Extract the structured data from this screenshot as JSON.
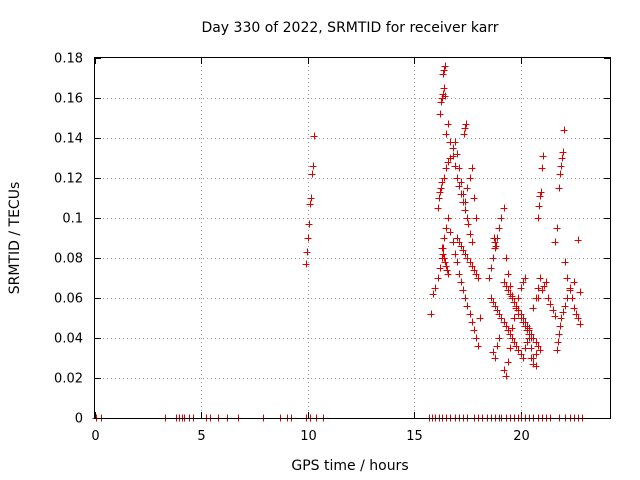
{
  "chart_data": {
    "type": "scatter",
    "title": "Day 330 of 2022, SRMTID for receiver karr",
    "xlabel": "GPS time / hours",
    "ylabel": "SRMTID / TECUs",
    "xlim": [
      0,
      24.2
    ],
    "ylim": [
      0,
      0.18
    ],
    "x_ticks": [
      0,
      5,
      10,
      15,
      20
    ],
    "x_tick_labels": [
      "0",
      "5",
      "10",
      "15",
      "20"
    ],
    "y_ticks": [
      0,
      0.02,
      0.04,
      0.06,
      0.08,
      0.1,
      0.12,
      0.14,
      0.16,
      0.18
    ],
    "y_tick_labels": [
      "0",
      "0.02",
      "0.04",
      "0.06",
      "0.08",
      "0.1",
      "0.12",
      "0.14",
      "0.16",
      "0.18"
    ],
    "grid": true,
    "marker": "+",
    "color": "#dd0000",
    "series": [
      {
        "x": [
          0.05,
          0.3,
          3.3,
          3.8,
          3.95,
          4.1,
          4.2,
          4.4,
          4.6,
          5.2,
          5.4,
          5.8,
          6.2,
          6.7,
          7.9,
          8.7,
          9.0,
          9.2,
          9.9,
          10.1,
          10.4,
          10.7,
          15.7,
          15.85,
          16.0,
          16.15,
          16.3,
          16.5,
          16.7,
          16.9,
          17.1,
          17.3,
          17.5,
          17.8,
          18.0,
          18.2,
          18.4,
          18.6,
          18.8,
          19.0,
          19.1,
          19.3,
          19.5,
          19.7,
          19.9,
          20.0,
          20.2,
          20.4,
          20.6,
          20.8,
          21.0,
          21.2,
          21.4,
          21.8,
          22.1,
          22.3,
          22.5,
          22.7,
          22.9,
          9.9,
          9.95,
          10.0,
          10.05,
          10.1,
          10.15,
          10.2,
          10.25,
          10.3,
          15.8,
          15.9,
          16.0,
          16.1,
          16.2,
          16.3,
          16.35,
          16.4,
          16.5,
          16.6,
          16.7,
          16.8,
          16.9,
          17.0,
          17.1,
          17.2,
          17.3,
          17.4,
          17.5,
          17.6,
          17.7,
          17.8,
          17.9,
          18.0,
          18.1,
          16.1,
          16.15,
          16.2,
          16.25,
          16.3,
          16.4,
          16.5,
          16.6,
          16.7,
          16.8,
          16.9,
          17.0,
          17.1,
          17.2,
          17.3,
          17.4,
          17.5,
          17.6,
          17.7,
          17.8,
          17.9,
          16.2,
          16.25,
          16.3,
          16.35,
          16.4,
          16.45,
          16.5,
          16.6,
          16.7,
          16.8,
          16.9,
          17.0,
          17.1,
          17.2,
          17.3,
          17.4,
          17.5,
          17.55,
          17.6,
          17.7,
          18.5,
          18.6,
          18.7,
          18.8,
          18.9,
          19.0,
          19.1,
          19.2,
          19.3,
          19.4,
          19.5,
          19.6,
          19.7,
          19.8,
          19.9,
          20.0,
          20.1,
          20.2,
          20.3,
          20.4,
          20.5,
          20.6,
          20.7,
          20.8,
          20.9,
          18.6,
          18.7,
          18.8,
          18.9,
          19.0,
          19.1,
          19.2,
          19.3,
          19.4,
          19.5,
          19.6,
          19.7,
          19.8,
          19.9,
          20.0,
          20.1,
          20.2,
          20.3,
          20.4,
          20.5,
          20.6,
          20.7,
          20.8,
          18.7,
          18.8,
          18.9,
          19.0,
          19.2,
          19.3,
          19.4,
          19.5,
          19.6,
          19.7,
          19.8,
          19.9,
          20.0,
          20.1,
          20.2,
          20.4,
          20.5,
          20.6,
          20.7,
          20.8,
          20.85,
          20.9,
          20.95,
          21.0,
          21.05,
          21.6,
          21.7,
          21.8,
          21.85,
          21.9,
          21.95,
          22.0,
          22.05,
          22.1,
          22.2,
          22.3,
          22.4,
          22.5,
          22.6,
          22.7,
          22.8,
          21.7,
          21.75,
          21.8,
          21.85,
          21.9,
          22.0,
          22.1,
          22.2,
          22.3,
          22.5,
          22.7,
          22.8,
          16.35,
          16.4,
          16.45,
          17.35,
          17.4,
          17.45,
          18.75,
          18.8,
          18.85,
          16.3,
          16.35,
          16.4,
          16.45,
          16.5,
          16.55,
          16.6,
          17.0,
          17.1,
          17.2,
          17.3,
          17.4,
          17.5,
          17.6,
          17.7,
          17.8,
          17.9,
          18.0,
          19.2,
          19.3,
          19.4,
          19.5,
          19.6,
          19.7,
          19.8,
          19.9,
          20.0,
          20.1,
          20.2,
          20.3,
          20.4,
          20.5,
          20.6,
          20.7,
          20.8,
          20.9,
          21.0,
          21.1,
          21.2,
          21.3,
          21.4,
          21.5,
          21.6
        ],
        "y": [
          0,
          0,
          0,
          0,
          0,
          0,
          0,
          0,
          0,
          0,
          0,
          0,
          0,
          0,
          0,
          0,
          0,
          0,
          0,
          0,
          0,
          0,
          0,
          0,
          0,
          0,
          0,
          0,
          0,
          0,
          0,
          0,
          0,
          0,
          0,
          0,
          0,
          0,
          0,
          0,
          0,
          0,
          0,
          0,
          0,
          0,
          0,
          0,
          0,
          0,
          0,
          0,
          0,
          0,
          0,
          0,
          0,
          0,
          0,
          0.077,
          0.083,
          0.09,
          0.097,
          0.107,
          0.11,
          0.122,
          0.126,
          0.141,
          0.052,
          0.062,
          0.065,
          0.07,
          0.075,
          0.08,
          0.085,
          0.09,
          0.095,
          0.1,
          0.093,
          0.088,
          0.082,
          0.078,
          0.072,
          0.068,
          0.064,
          0.06,
          0.056,
          0.052,
          0.048,
          0.044,
          0.04,
          0.036,
          0.05,
          0.105,
          0.11,
          0.113,
          0.115,
          0.118,
          0.12,
          0.125,
          0.128,
          0.13,
          0.135,
          0.138,
          0.132,
          0.125,
          0.118,
          0.112,
          0.108,
          0.115,
          0.12,
          0.125,
          0.11,
          0.1,
          0.152,
          0.158,
          0.16,
          0.162,
          0.165,
          0.176,
          0.142,
          0.147,
          0.138,
          0.131,
          0.126,
          0.12,
          0.116,
          0.112,
          0.108,
          0.104,
          0.1,
          0.097,
          0.092,
          0.088,
          0.07,
          0.075,
          0.08,
          0.085,
          0.09,
          0.095,
          0.1,
          0.105,
          0.08,
          0.072,
          0.066,
          0.061,
          0.058,
          0.055,
          0.052,
          0.05,
          0.048,
          0.046,
          0.044,
          0.042,
          0.04,
          0.055,
          0.06,
          0.065,
          0.07,
          0.06,
          0.058,
          0.056,
          0.054,
          0.052,
          0.05,
          0.048,
          0.046,
          0.044,
          0.042,
          0.04,
          0.038,
          0.036,
          0.034,
          0.032,
          0.03,
          0.035,
          0.038,
          0.04,
          0.03,
          0.027,
          0.032,
          0.06,
          0.033,
          0.03,
          0.036,
          0.04,
          0.024,
          0.021,
          0.028,
          0.035,
          0.045,
          0.05,
          0.055,
          0.06,
          0.065,
          0.068,
          0.07,
          0.045,
          0.035,
          0.03,
          0.026,
          0.1,
          0.106,
          0.111,
          0.113,
          0.125,
          0.131,
          0.088,
          0.095,
          0.115,
          0.122,
          0.126,
          0.13,
          0.133,
          0.144,
          0.078,
          0.07,
          0.065,
          0.06,
          0.055,
          0.052,
          0.05,
          0.047,
          0.034,
          0.038,
          0.042,
          0.046,
          0.05,
          0.053,
          0.056,
          0.06,
          0.064,
          0.068,
          0.089,
          0.063,
          0.172,
          0.174,
          0.161,
          0.142,
          0.145,
          0.147,
          0.09,
          0.088,
          0.086,
          0.085,
          0.082,
          0.08,
          0.078,
          0.076,
          0.074,
          0.072,
          0.09,
          0.088,
          0.086,
          0.084,
          0.082,
          0.08,
          0.078,
          0.076,
          0.074,
          0.072,
          0.07,
          0.068,
          0.066,
          0.064,
          0.062,
          0.06,
          0.058,
          0.056,
          0.054,
          0.052,
          0.05,
          0.048,
          0.046,
          0.044,
          0.042,
          0.04,
          0.038,
          0.036,
          0.034,
          0.064,
          0.066,
          0.068,
          0.06,
          0.057,
          0.054,
          0.051
        ]
      }
    ]
  }
}
